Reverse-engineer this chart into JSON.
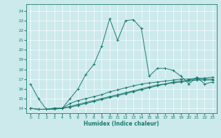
{
  "xlabel": "Humidex (Indice chaleur)",
  "ylabel": "",
  "bg_color": "#cce9ec",
  "line_color": "#1a7a6e",
  "xlim": [
    -0.5,
    23.5
  ],
  "ylim": [
    13.5,
    24.7
  ],
  "xticks": [
    0,
    1,
    2,
    3,
    4,
    5,
    6,
    7,
    8,
    9,
    10,
    11,
    12,
    13,
    14,
    15,
    16,
    17,
    18,
    19,
    20,
    21,
    22,
    23
  ],
  "yticks": [
    14,
    15,
    16,
    17,
    18,
    19,
    20,
    21,
    22,
    23,
    24
  ],
  "series1_x": [
    0,
    1,
    2,
    3,
    4,
    5,
    6,
    7,
    8,
    9,
    10,
    11,
    12,
    13,
    14,
    15,
    16,
    17,
    18,
    19,
    20,
    21,
    22,
    23
  ],
  "series1_y": [
    16.5,
    15.0,
    13.9,
    13.9,
    14.0,
    15.0,
    16.0,
    17.5,
    18.5,
    20.4,
    23.2,
    21.0,
    23.0,
    23.1,
    22.2,
    17.3,
    18.1,
    18.1,
    17.9,
    17.3,
    16.5,
    17.2,
    16.5,
    16.7
  ],
  "series2_x": [
    0,
    1,
    2,
    3,
    4,
    5,
    6,
    7,
    8,
    9,
    10,
    11,
    12,
    13,
    14,
    15,
    16,
    17,
    18,
    19,
    20,
    21,
    22,
    23
  ],
  "series2_y": [
    14.0,
    13.9,
    13.9,
    14.0,
    14.0,
    14.5,
    14.8,
    15.0,
    15.2,
    15.4,
    15.7,
    15.9,
    16.1,
    16.3,
    16.5,
    16.6,
    16.7,
    16.8,
    16.9,
    17.0,
    17.0,
    17.1,
    17.1,
    17.2
  ],
  "series3_x": [
    0,
    1,
    2,
    3,
    4,
    5,
    6,
    7,
    8,
    9,
    10,
    11,
    12,
    13,
    14,
    15,
    16,
    17,
    18,
    19,
    20,
    21,
    22,
    23
  ],
  "series3_y": [
    14.0,
    13.9,
    13.9,
    14.0,
    14.0,
    14.2,
    14.4,
    14.6,
    14.8,
    15.0,
    15.2,
    15.4,
    15.6,
    15.8,
    16.0,
    16.2,
    16.4,
    16.5,
    16.6,
    16.7,
    16.8,
    16.9,
    16.9,
    16.9
  ],
  "series4_x": [
    0,
    1,
    2,
    3,
    4,
    5,
    6,
    7,
    8,
    9,
    10,
    11,
    12,
    13,
    14,
    15,
    16,
    17,
    18,
    19,
    20,
    21,
    22,
    23
  ],
  "series4_y": [
    14.0,
    13.9,
    13.9,
    14.0,
    14.0,
    14.1,
    14.3,
    14.5,
    14.7,
    14.9,
    15.1,
    15.3,
    15.5,
    15.7,
    15.9,
    16.1,
    16.3,
    16.5,
    16.7,
    16.8,
    16.9,
    17.0,
    17.0,
    17.0
  ]
}
